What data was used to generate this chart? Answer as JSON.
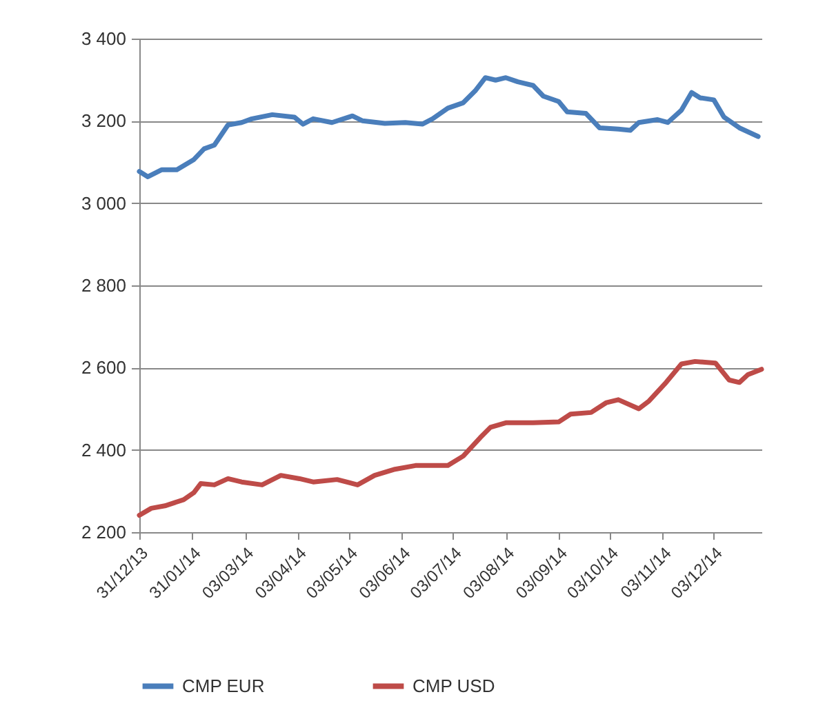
{
  "chart_data": {
    "type": "line",
    "xlim": [
      "2013-12-31",
      "2014-12-31"
    ],
    "xticks": [
      {
        "value": "2013-12-31",
        "label": "31/12/13"
      },
      {
        "value": "2014-01-31",
        "label": "31/01/14"
      },
      {
        "value": "2014-03-03",
        "label": "03/03/14"
      },
      {
        "value": "2014-04-03",
        "label": "03/04/14"
      },
      {
        "value": "2014-05-03",
        "label": "03/05/14"
      },
      {
        "value": "2014-06-03",
        "label": "03/06/14"
      },
      {
        "value": "2014-07-03",
        "label": "03/07/14"
      },
      {
        "value": "2014-08-03",
        "label": "03/08/14"
      },
      {
        "value": "2014-09-03",
        "label": "03/09/14"
      },
      {
        "value": "2014-10-03",
        "label": "03/10/14"
      },
      {
        "value": "2014-11-03",
        "label": "03/11/14"
      },
      {
        "value": "2014-12-03",
        "label": "03/12/14"
      }
    ],
    "ylim": [
      2200,
      3400
    ],
    "yticks": [
      {
        "value": 2200,
        "label": "2 200"
      },
      {
        "value": 2400,
        "label": "2 400"
      },
      {
        "value": 2600,
        "label": "2 600"
      },
      {
        "value": 2800,
        "label": "2 800"
      },
      {
        "value": 3000,
        "label": "3 000"
      },
      {
        "value": 3200,
        "label": "3 200"
      },
      {
        "value": 3400,
        "label": "3 400"
      }
    ],
    "grid": "y",
    "legend": "bottom",
    "marker": "none",
    "series": [
      {
        "name": "CMP EUR",
        "color": "#4a7ebb",
        "x": [
          "2013-12-31",
          "2014-01-05",
          "2014-01-13",
          "2014-01-22",
          "2014-02-01",
          "2014-02-07",
          "2014-02-13",
          "2014-02-21",
          "2014-03-01",
          "2014-03-07",
          "2014-03-19",
          "2014-04-01",
          "2014-04-06",
          "2014-04-12",
          "2014-04-23",
          "2014-05-05",
          "2014-05-11",
          "2014-05-24",
          "2014-06-05",
          "2014-06-15",
          "2014-06-21",
          "2014-06-30",
          "2014-07-09",
          "2014-07-16",
          "2014-07-22",
          "2014-07-28",
          "2014-08-03",
          "2014-08-10",
          "2014-08-19",
          "2014-08-25",
          "2014-09-03",
          "2014-09-08",
          "2014-09-19",
          "2014-09-27",
          "2014-10-08",
          "2014-10-15",
          "2014-10-20",
          "2014-10-31",
          "2014-11-06",
          "2014-11-14",
          "2014-11-20",
          "2014-11-25",
          "2014-12-03",
          "2014-12-09",
          "2014-12-18",
          "2014-12-29"
        ],
        "values": [
          3077,
          3064,
          3081,
          3081,
          3106,
          3132,
          3141,
          3190,
          3196,
          3205,
          3215,
          3209,
          3192,
          3205,
          3196,
          3212,
          3200,
          3194,
          3196,
          3192,
          3205,
          3231,
          3244,
          3273,
          3305,
          3299,
          3305,
          3295,
          3286,
          3260,
          3247,
          3222,
          3218,
          3183,
          3180,
          3177,
          3196,
          3203,
          3196,
          3226,
          3269,
          3256,
          3251,
          3209,
          3183,
          3162
        ]
      },
      {
        "name": "CMP USD",
        "color": "#be4b48",
        "x": [
          "2013-12-31",
          "2014-01-07",
          "2014-01-15",
          "2014-01-26",
          "2014-02-01",
          "2014-02-05",
          "2014-02-13",
          "2014-02-21",
          "2014-03-01",
          "2014-03-13",
          "2014-03-24",
          "2014-04-04",
          "2014-04-12",
          "2014-04-26",
          "2014-05-08",
          "2014-05-18",
          "2014-05-30",
          "2014-06-11",
          "2014-06-30",
          "2014-07-09",
          "2014-07-19",
          "2014-07-25",
          "2014-08-03",
          "2014-08-19",
          "2014-09-03",
          "2014-09-10",
          "2014-09-22",
          "2014-10-01",
          "2014-10-08",
          "2014-10-20",
          "2014-10-26",
          "2014-11-05",
          "2014-11-14",
          "2014-11-22",
          "2014-12-04",
          "2014-12-12",
          "2014-12-18",
          "2014-12-23",
          "2014-12-31"
        ],
        "values": [
          2241,
          2258,
          2264,
          2279,
          2296,
          2318,
          2315,
          2330,
          2322,
          2315,
          2338,
          2330,
          2322,
          2328,
          2315,
          2338,
          2353,
          2362,
          2362,
          2385,
          2430,
          2455,
          2466,
          2466,
          2468,
          2487,
          2491,
          2515,
          2522,
          2500,
          2519,
          2564,
          2609,
          2615,
          2611,
          2570,
          2564,
          2583,
          2596
        ]
      }
    ]
  }
}
